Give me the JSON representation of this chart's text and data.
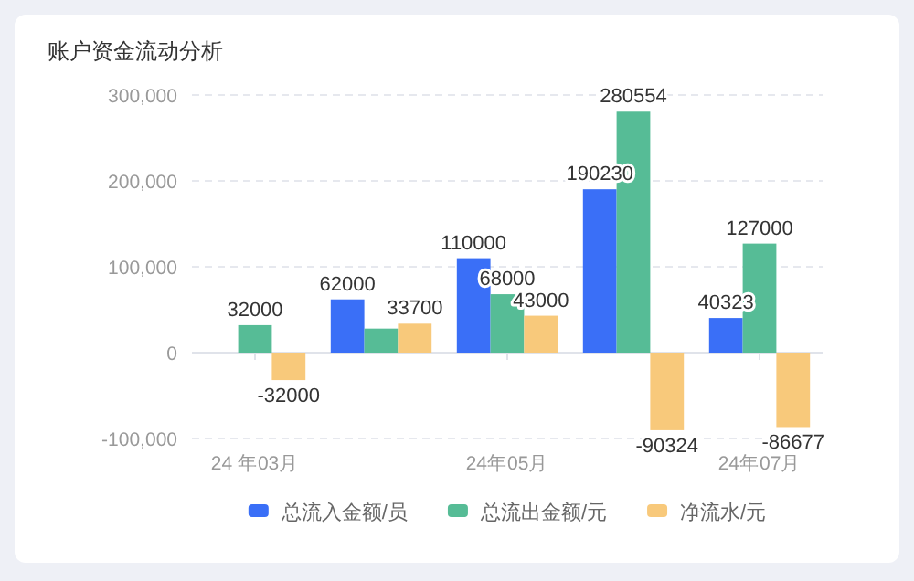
{
  "chart_data": {
    "type": "bar",
    "title": "账户资金流动分析",
    "categories": [
      "24 年03月",
      null,
      "24年05月",
      null,
      "24年07月"
    ],
    "series": [
      {
        "name": "总流入金额/员",
        "color": "#3a6ff7",
        "values": [
          null,
          62000,
          110000,
          190230,
          40323
        ],
        "value_labels": [
          null,
          "62000",
          "110000",
          "190230",
          "40323"
        ]
      },
      {
        "name": "总流出金额/元",
        "color": "#56bc96",
        "values": [
          32000,
          28000,
          68000,
          280554,
          127000
        ],
        "value_labels": [
          "32000",
          null,
          "68000",
          "280554",
          "127000"
        ]
      },
      {
        "name": "净流水/元",
        "color": "#f8c97b",
        "values": [
          -32000,
          33700,
          43000,
          -90324,
          -86677
        ],
        "value_labels": [
          "-32000",
          "33700",
          "43000",
          "-90324",
          "-86677"
        ]
      }
    ],
    "ylim": [
      -100000,
      300000
    ],
    "yticks": [
      {
        "value": -100000,
        "label": "-100,000"
      },
      {
        "value": 0,
        "label": "0"
      },
      {
        "value": 100000,
        "label": "100,000"
      },
      {
        "value": 200000,
        "label": "200,000"
      },
      {
        "value": 300000,
        "label": "300,000"
      }
    ],
    "grid": "y",
    "legend": "bottom"
  }
}
